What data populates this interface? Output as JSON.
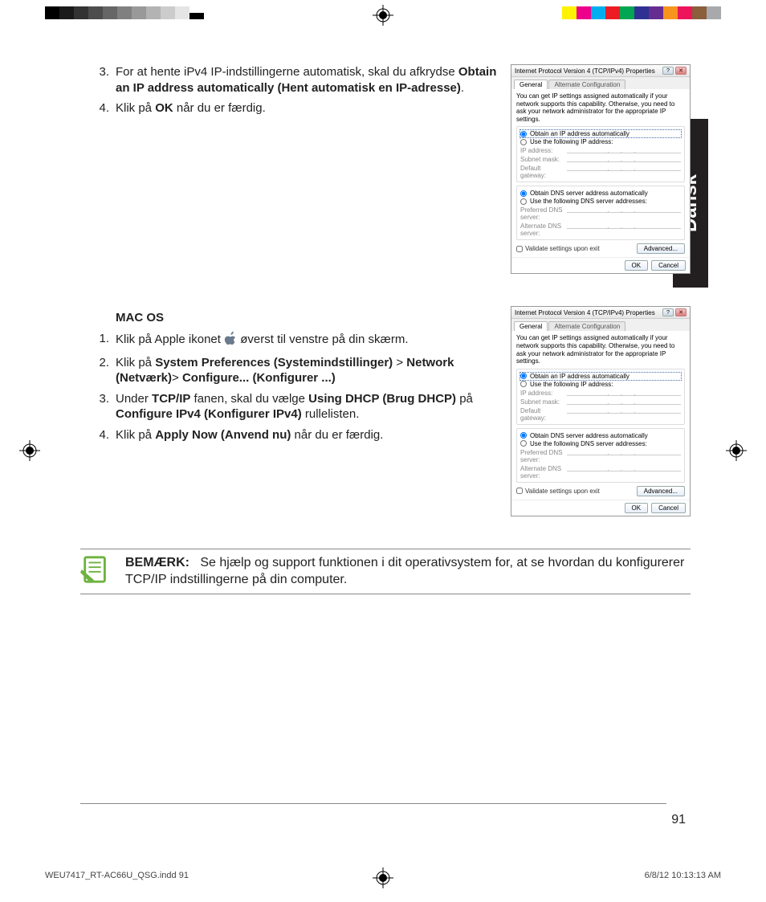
{
  "printbars": {
    "greys": [
      "#000000",
      "#1a1a1a",
      "#333333",
      "#4d4d4d",
      "#666666",
      "#808080",
      "#999999",
      "#b3b3b3",
      "#cccccc",
      "#e5e5e5"
    ],
    "colors": [
      "#ffffff",
      "#fff200",
      "#ec008c",
      "#00aeef",
      "#ed1c24",
      "#00a651",
      "#2e3192",
      "#662d91",
      "#f7941d",
      "#ed145b",
      "#8b5e3c",
      "#a7a9ac"
    ]
  },
  "language_tab": "Dansk",
  "section1": {
    "items": [
      {
        "num": "3.",
        "pre": "For at hente iPv4 IP-indstillingerne automatisk, skal du afkrydse ",
        "bold": "Obtain an IP address automatically (Hent automatisk en IP-adresse)",
        "post": "."
      },
      {
        "num": "4.",
        "pre": "Klik på ",
        "bold": "OK",
        "post": " når du er færdig."
      }
    ]
  },
  "section2": {
    "heading": "MAC OS",
    "items": [
      {
        "num": "1.",
        "html": "Klik på Apple ikonet {APPLE} øverst til venstre på din skærm."
      },
      {
        "num": "2.",
        "pre": "Klik på ",
        "bold": "System Preferences (Systemindstillinger)",
        "mid": " > ",
        "bold2": "Network (Netværk)",
        "mid2": "> ",
        "bold3": "Configure... (Konfigurer ...)"
      },
      {
        "num": "3.",
        "pre": "Under ",
        "bold": "TCP/IP",
        "mid": " fanen, skal du vælge ",
        "bold2": "Using DHCP (Brug DHCP)",
        "mid2": " på ",
        "bold3": "Configure IPv4 (Konfigurer IPv4)",
        "post": " rullelisten."
      },
      {
        "num": "4.",
        "pre": "Klik på ",
        "bold": "Apply Now (Anvend nu)",
        "post": " når du er færdig."
      }
    ]
  },
  "dialog": {
    "title": "Internet Protocol Version 4 (TCP/IPv4) Properties",
    "tab1": "General",
    "tab2": "Alternate Configuration",
    "desc": "You can get IP settings assigned automatically if your network supports this capability. Otherwise, you need to ask your network administrator for the appropriate IP settings.",
    "r1": "Obtain an IP address automatically",
    "r2": "Use the following IP address:",
    "f1": "IP address:",
    "f2": "Subnet mask:",
    "f3": "Default gateway:",
    "r3": "Obtain DNS server address automatically",
    "r4": "Use the following DNS server addresses:",
    "f4": "Preferred DNS server:",
    "f5": "Alternate DNS server:",
    "chk": "Validate settings upon exit",
    "adv": "Advanced...",
    "ok": "OK",
    "cancel": "Cancel"
  },
  "note": {
    "label": "BEMÆRK:",
    "text": "Se hjælp og support funktionen i dit operativsystem for, at se hvordan du konfigurerer TCP/IP indstillingerne på din computer."
  },
  "page_number": "91",
  "footer": {
    "file": "WEU7417_RT-AC66U_QSG.indd   91",
    "stamp": "6/8/12   10:13:13 AM"
  },
  "colors": {
    "note_icon": "#6db33f",
    "apple": "#6b7b8c",
    "tab_bg": "#231f20"
  }
}
